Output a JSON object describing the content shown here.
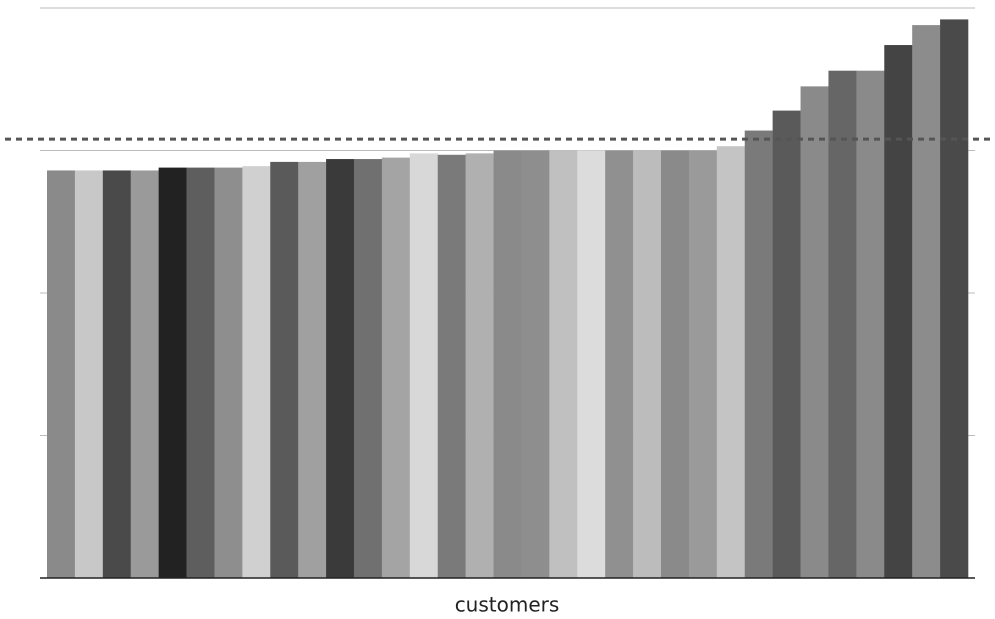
{
  "chart_data": {
    "type": "bar",
    "x_label": "customers",
    "values": [
      2.86,
      2.86,
      2.86,
      2.86,
      2.88,
      2.88,
      2.88,
      2.89,
      2.92,
      2.92,
      2.94,
      2.94,
      2.95,
      2.98,
      2.97,
      2.98,
      3.0,
      3.0,
      3.0,
      3.0,
      3.0,
      3.0,
      3.0,
      3.0,
      3.03,
      3.14,
      3.28,
      3.45,
      3.56,
      3.56,
      3.74,
      3.88,
      3.92
    ],
    "colors": [
      "#8a8a8a",
      "#c8c8c8",
      "#4a4a4a",
      "#9a9a9a",
      "#222222",
      "#5e5e5e",
      "#8e8e8e",
      "#d0d0d0",
      "#5a5a5a",
      "#a0a0a0",
      "#3a3a3a",
      "#707070",
      "#a4a4a4",
      "#d8d8d8",
      "#7a7a7a",
      "#b0b0b0",
      "#8a8a8a",
      "#8e8e8e",
      "#c0c0c0",
      "#dcdcdc",
      "#909090",
      "#bcbcbc",
      "#8a8a8a",
      "#9a9a9a",
      "#c4c4c4",
      "#7a7a7a",
      "#5a5a5a",
      "#8a8a8a",
      "#666666",
      "#8a8a8a",
      "#444444",
      "#8c8c8c",
      "#4a4a4a"
    ],
    "ylim": [
      0,
      4
    ],
    "yticks": [
      1,
      2,
      3,
      4
    ],
    "grid": true,
    "reference_line": 3.08
  }
}
